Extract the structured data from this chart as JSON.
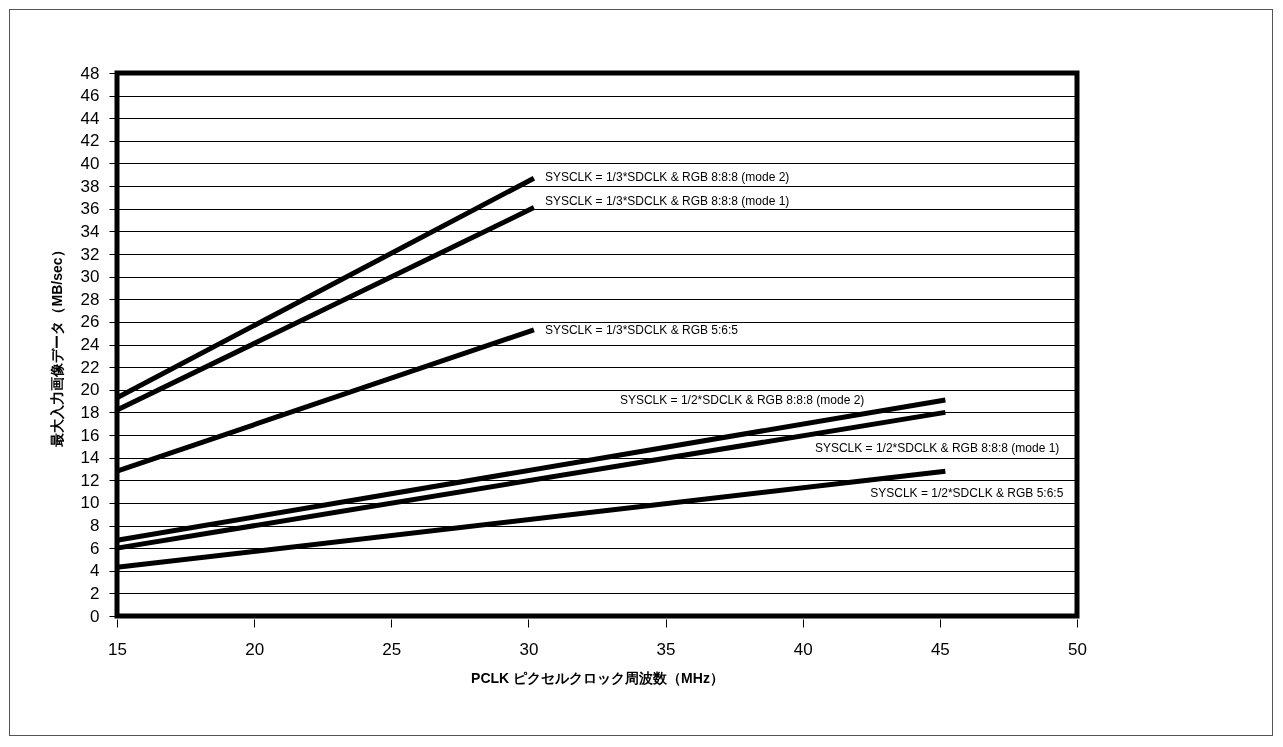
{
  "chart_data": {
    "type": "line",
    "xlabel": "PCLK ピクセルクロック周波数（MHz）",
    "ylabel": "最大入力画像データ（MB/sec）",
    "xlim": [
      15,
      50
    ],
    "xticks": [
      15,
      20,
      25,
      30,
      35,
      40,
      45,
      50
    ],
    "ylim": [
      0,
      48
    ],
    "yticks": [
      0,
      2,
      4,
      6,
      8,
      10,
      12,
      14,
      16,
      18,
      20,
      22,
      24,
      26,
      28,
      30,
      32,
      34,
      36,
      38,
      40,
      42,
      44,
      46,
      48
    ],
    "grid": "y",
    "legend": false,
    "marker": "none",
    "line_style": "solid",
    "series": [
      {
        "name": "SYSCLK = 1/3*SDCLK & RGB 8:8:8 (mode 2)",
        "color": "#000000",
        "x": [
          15,
          30.2
        ],
        "values": [
          19.3,
          38.7
        ]
      },
      {
        "name": "SYSCLK = 1/3*SDCLK & RGB 8:8:8 (mode 1)",
        "color": "#000000",
        "x": [
          15,
          30.2
        ],
        "values": [
          18.2,
          36.1
        ]
      },
      {
        "name": "SYSCLK = 1/3*SDCLK & RGB 5:6:5",
        "color": "#000000",
        "x": [
          15,
          30.2
        ],
        "values": [
          12.8,
          25.3
        ]
      },
      {
        "name": "SYSCLK = 1/2*SDCLK & RGB 8:8:8 (mode 2)",
        "color": "#000000",
        "x": [
          15,
          45.2
        ],
        "values": [
          6.7,
          19.1
        ]
      },
      {
        "name": "SYSCLK = 1/2*SDCLK & RGB 8:8:8 (mode 1)",
        "color": "#000000",
        "x": [
          15,
          45.2
        ],
        "values": [
          6.0,
          18.0
        ]
      },
      {
        "name": "SYSCLK = 1/2*SDCLK & RGB 5:6:5",
        "color": "#000000",
        "x": [
          15,
          45.2
        ],
        "values": [
          4.3,
          12.8
        ]
      }
    ]
  }
}
